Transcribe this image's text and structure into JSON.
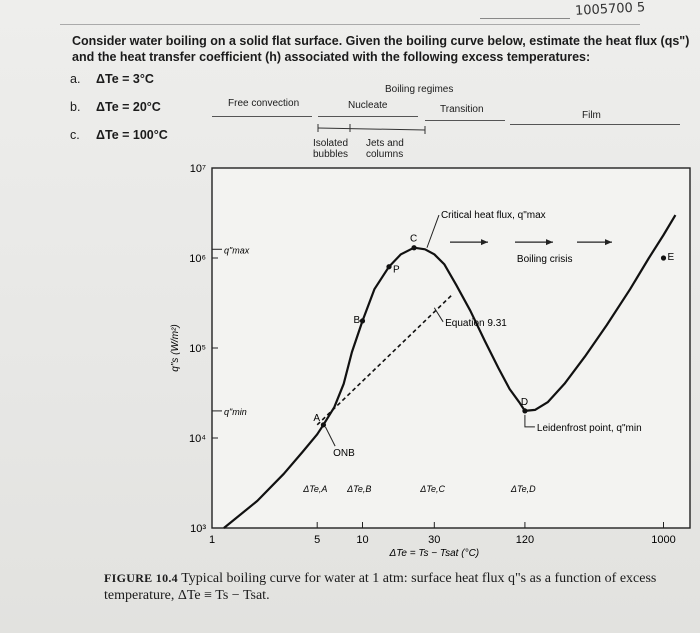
{
  "handwritten_note": "1005700 5",
  "question": "Consider water boiling on a solid flat surface. Given the boiling curve below, estimate the heat flux (qs\") and the heat transfer coefficient (h) associated with the following excess temperatures:",
  "parts": [
    {
      "label": "a.",
      "text": "ΔTe = 3°C"
    },
    {
      "label": "b.",
      "text": "ΔTe = 20°C"
    },
    {
      "label": "c.",
      "text": "ΔTe = 100°C"
    }
  ],
  "regimes": {
    "title": "Boiling regimes",
    "free_convection": "Free convection",
    "nucleate": "Nucleate",
    "transition": "Transition",
    "film": "Film",
    "isolated_bubbles": "Isolated bubbles",
    "jets_columns": "Jets and columns"
  },
  "chart_data": {
    "type": "line",
    "title": "",
    "xlabel": "ΔTe = Ts − Tsat (°C)",
    "ylabel": "q\"s (W/m²)",
    "x_scale": "log",
    "y_scale": "log",
    "xlim": [
      1,
      1500
    ],
    "ylim": [
      1000,
      10000000
    ],
    "x_ticks": [
      {
        "v": 1,
        "label": "1"
      },
      {
        "v": 5,
        "label": "5"
      },
      {
        "v": 10,
        "label": "10"
      },
      {
        "v": 30,
        "label": "30"
      },
      {
        "v": 120,
        "label": "120"
      },
      {
        "v": 1000,
        "label": "1000"
      }
    ],
    "y_ticks": [
      {
        "v": 1000,
        "label": "10³"
      },
      {
        "v": 10000,
        "label": "10⁴"
      },
      {
        "v": 100000,
        "label": "10⁵"
      },
      {
        "v": 1000000,
        "label": "10⁶"
      },
      {
        "v": 10000000,
        "label": "10⁷"
      }
    ],
    "series": [
      {
        "x": [
          1.2,
          2,
          3,
          4,
          5,
          5.5,
          6.5,
          7.5,
          8.5,
          10,
          12,
          15,
          18,
          22,
          26,
          30,
          35,
          42,
          52,
          65,
          80,
          95,
          110,
          120,
          140,
          170,
          220,
          300,
          420,
          600,
          800,
          1000,
          1200
        ],
        "y": [
          1000,
          2000,
          4000,
          7000,
          11000,
          14000,
          22000,
          40000,
          90000,
          200000,
          450000,
          800000,
          1100000,
          1300000,
          1250000,
          1100000,
          850000,
          500000,
          260000,
          120000,
          60000,
          35000,
          25000,
          20000,
          20500,
          25000,
          40000,
          80000,
          180000,
          450000,
          1000000,
          1800000,
          3000000
        ]
      }
    ],
    "equation_line": {
      "x": [
        5,
        40
      ],
      "y": [
        14000,
        400000
      ]
    },
    "annotations": {
      "q_max": "q\"max",
      "q_min": "q\"min",
      "critical_heat_flux": "Critical heat flux, q\"max",
      "boiling_crisis": "Boiling crisis",
      "equation": "Equation 9.31",
      "leidenfrost": "Leidenfrost point, q\"min",
      "onb": "ONB",
      "point_A": "A",
      "point_B": "B",
      "point_P": "P",
      "point_C": "C",
      "point_D": "D",
      "point_E": "E",
      "dT_A": "ΔTe,A",
      "dT_B": "ΔTe,B",
      "dT_C": "ΔTe,C",
      "dT_D": "ΔTe,D"
    }
  },
  "caption": {
    "figure_label": "FIGURE 10.4",
    "text": "Typical boiling curve for water at 1 atm: surface heat flux q\"s as a function of excess temperature, ΔTe ≡ Ts − Tsat."
  }
}
